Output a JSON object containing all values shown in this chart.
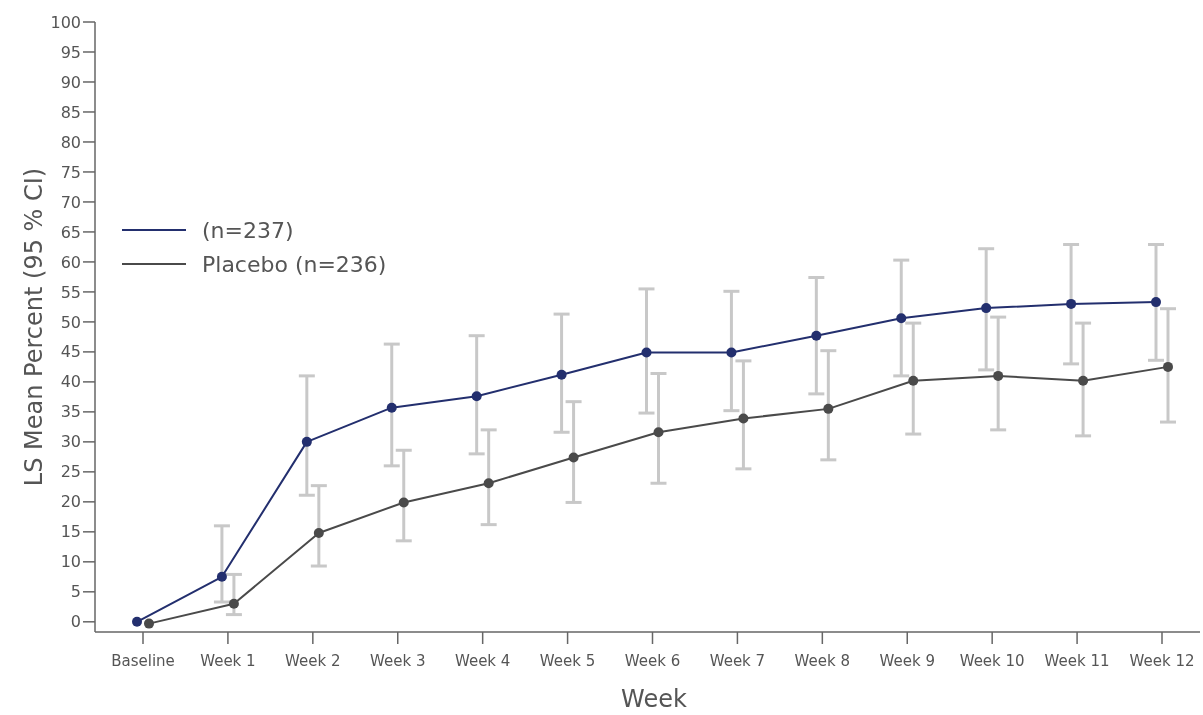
{
  "chart_data": {
    "type": "line",
    "xlabel": "Week",
    "ylabel": "LS Mean Percent (95 % CI)",
    "categories": [
      "Baseline",
      "Week 1",
      "Week 2",
      "Week 3",
      "Week 4",
      "Week 5",
      "Week 6",
      "Week 7",
      "Week 8",
      "Week 9",
      "Week 10",
      "Week 11",
      "Week 12"
    ],
    "ylim": [
      -1.7,
      100
    ],
    "yticks": [
      0,
      5,
      10,
      15,
      20,
      25,
      30,
      35,
      40,
      45,
      50,
      55,
      60,
      65,
      70,
      75,
      80,
      85,
      90,
      95,
      100
    ],
    "grid": false,
    "legend": "top left",
    "marker": "circle",
    "line_style": "solid",
    "series": [
      {
        "name": "(n=237)",
        "color": "#232f6e",
        "values": [
          0,
          7.5,
          30,
          35.7,
          37.6,
          41.2,
          44.9,
          44.9,
          47.7,
          50.6,
          52.3,
          53,
          53.3
        ],
        "errors": [
          null,
          [
            3.3,
            16
          ],
          [
            21.1,
            41
          ],
          [
            26,
            46.3
          ],
          [
            28,
            47.7
          ],
          [
            31.6,
            51.3
          ],
          [
            34.8,
            55.5
          ],
          [
            35.2,
            55.1
          ],
          [
            38,
            57.4
          ],
          [
            41,
            60.3
          ],
          [
            42,
            62.2
          ],
          [
            43,
            62.9
          ],
          [
            43.6,
            62.9
          ]
        ]
      },
      {
        "name": "Placebo (n=236)",
        "color": "#4a4a4a",
        "values": [
          -0.3,
          3,
          14.8,
          19.9,
          23.1,
          27.4,
          31.6,
          33.9,
          35.5,
          40.2,
          41,
          40.2,
          42.5
        ],
        "errors": [
          null,
          [
            1.2,
            7.9
          ],
          [
            9.3,
            22.7
          ],
          [
            13.5,
            28.6
          ],
          [
            16.2,
            32
          ],
          [
            19.9,
            36.7
          ],
          [
            23.1,
            41.4
          ],
          [
            25.5,
            43.5
          ],
          [
            27,
            45.2
          ],
          [
            31.3,
            49.8
          ],
          [
            32,
            50.8
          ],
          [
            31,
            49.8
          ],
          [
            33.3,
            52.2
          ]
        ]
      }
    ]
  }
}
